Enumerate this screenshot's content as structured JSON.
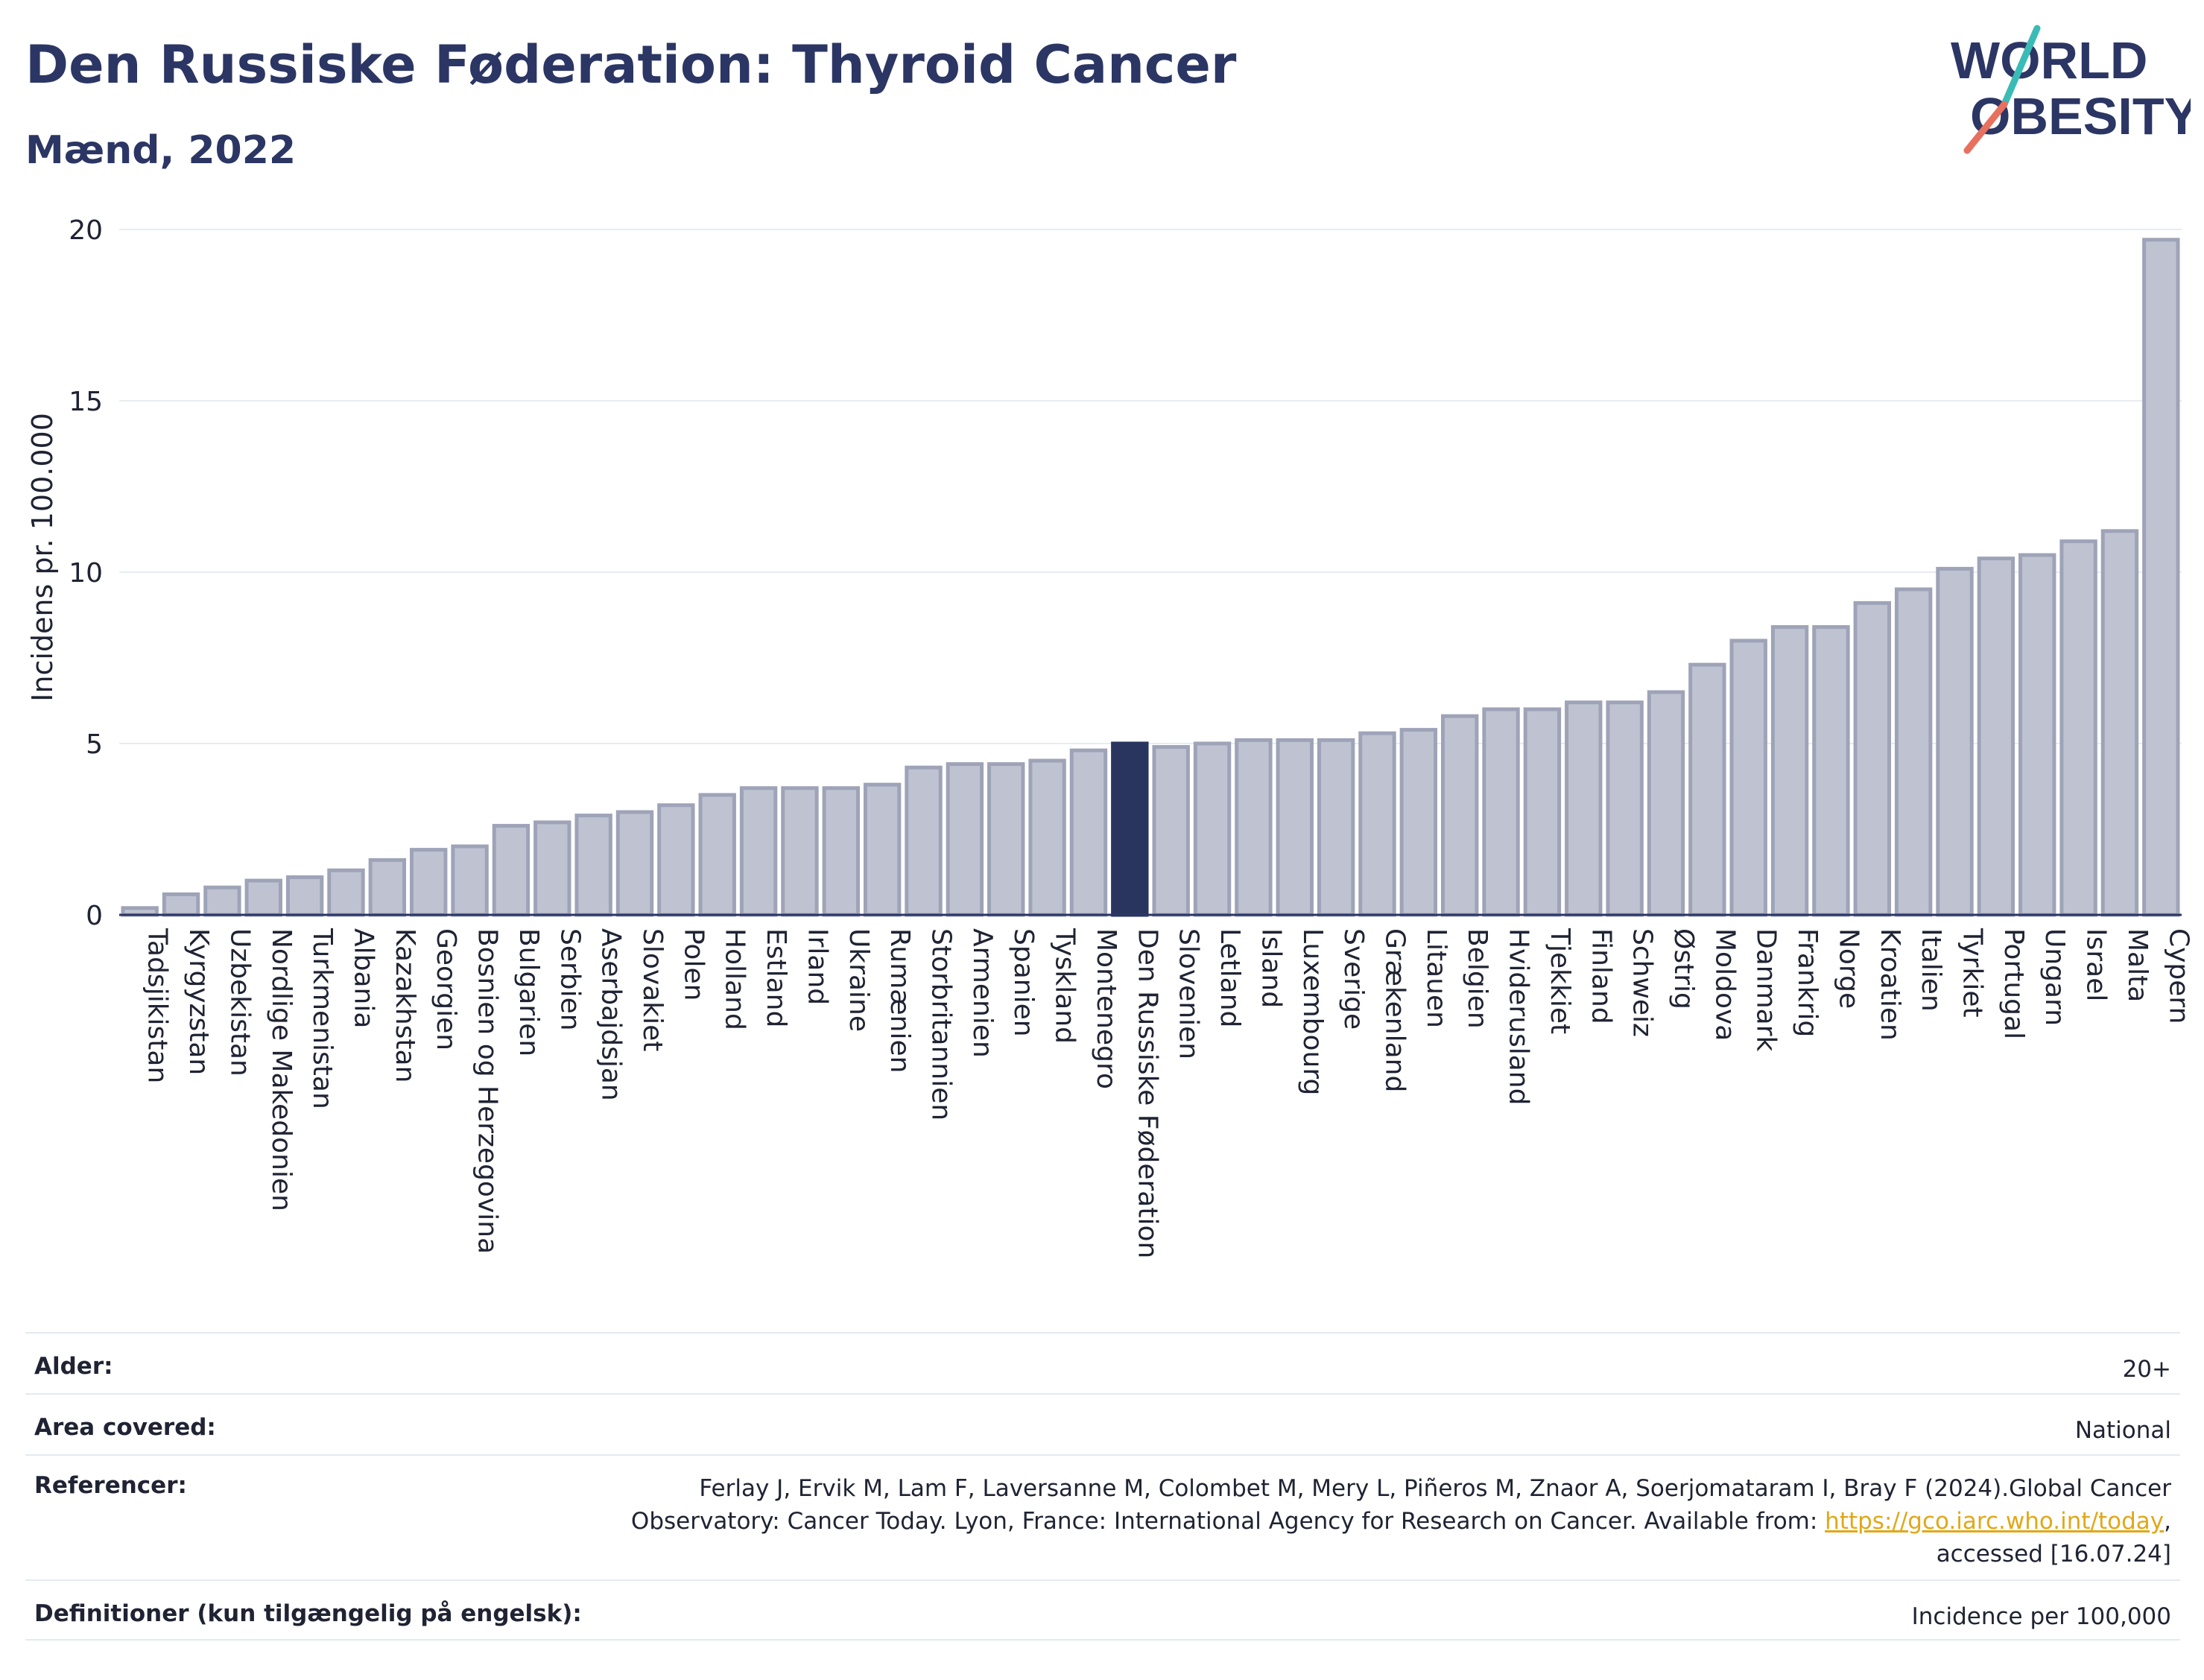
{
  "header": {
    "title": "Den Russiske Føderation: Thyroid Cancer",
    "subtitle": "Mænd, 2022",
    "logo_line1": "WORLD",
    "logo_line2": "OBESITY"
  },
  "colors": {
    "bar_default": "#bfc3d1",
    "bar_default_stroke": "#9ea3b8",
    "bar_highlight": "#29345f",
    "grid": "#e8ecf2",
    "text": "#1f2333",
    "title": "#2b3664",
    "link": "#e0a819",
    "logo_teal": "#3bbbb6",
    "logo_red": "#e8705e"
  },
  "chart_data": {
    "type": "bar",
    "title": "Den Russiske Føderation: Thyroid Cancer",
    "subtitle": "Mænd, 2022",
    "ylabel": "Incidens pr. 100.000",
    "xlabel": "",
    "ylim": [
      0,
      20
    ],
    "yticks": [
      0,
      5,
      10,
      15,
      20
    ],
    "grid": true,
    "highlight": "Den Russiske Føderation",
    "categories": [
      "Tadsjikistan",
      "Kyrgyzstan",
      "Uzbekistan",
      "Nordlige Makedonien",
      "Turkmenistan",
      "Albania",
      "Kazakhstan",
      "Georgien",
      "Bosnien og Herzegovina",
      "Bulgarien",
      "Serbien",
      "Aserbajdsjan",
      "Slovakiet",
      "Polen",
      "Holland",
      "Estland",
      "Irland",
      "Ukraine",
      "Rumænien",
      "Storbritannien",
      "Armenien",
      "Spanien",
      "Tyskland",
      "Montenegro",
      "Den Russiske Føderation",
      "Slovenien",
      "Letland",
      "Island",
      "Luxembourg",
      "Sverige",
      "Grækenland",
      "Litauen",
      "Belgien",
      "Hviderusland",
      "Tjekkiet",
      "Finland",
      "Schweiz",
      "Østrig",
      "Moldova",
      "Danmark",
      "Frankrig",
      "Norge",
      "Kroatien",
      "Italien",
      "Tyrkiet",
      "Portugal",
      "Ungarn",
      "Israel",
      "Malta",
      "Cypern"
    ],
    "values": [
      0.2,
      0.6,
      0.8,
      1.0,
      1.1,
      1.3,
      1.6,
      1.9,
      2.0,
      2.6,
      2.7,
      2.9,
      3.0,
      3.2,
      3.5,
      3.7,
      3.7,
      3.7,
      3.8,
      4.3,
      4.4,
      4.4,
      4.5,
      4.8,
      5.0,
      4.9,
      5.0,
      5.1,
      5.1,
      5.1,
      5.3,
      5.4,
      5.8,
      6.0,
      6.0,
      6.2,
      6.2,
      6.5,
      7.3,
      8.0,
      8.4,
      8.4,
      9.1,
      9.5,
      10.1,
      10.4,
      10.5,
      10.9,
      11.2,
      19.7
    ]
  },
  "info": {
    "rows": [
      {
        "label": "Alder:",
        "value": "20+"
      },
      {
        "label": "Area covered:",
        "value": "National"
      },
      {
        "label": "Referencer:",
        "value_line1": "Ferlay J, Ervik M, Lam F, Laversanne M, Colombet M, Mery L, Piñeros M, Znaor A, Soerjomataram I, Bray F (2024).Global Cancer",
        "value_line2_prefix": "Observatory: Cancer Today. Lyon, France: International Agency for Research on Cancer. Available from: ",
        "value_link": "https://gco.iarc.who.int/today",
        "value_line2_suffix": ",",
        "value_line3": "accessed [16.07.24]"
      },
      {
        "label": "Definitioner (kun tilgængelig på engelsk):",
        "value": "Incidence per 100,000"
      }
    ]
  }
}
